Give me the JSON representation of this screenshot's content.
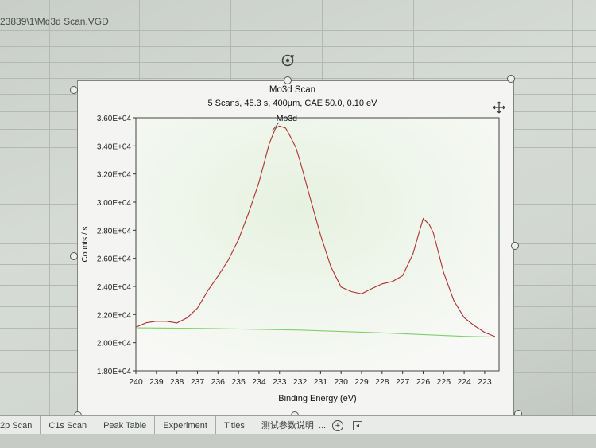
{
  "sheet": {
    "title": "23839\\1\\Mo3d Scan.VGD"
  },
  "tabs": [
    {
      "label": "2p Scan"
    },
    {
      "label": "C1s Scan"
    },
    {
      "label": "Peak Table"
    },
    {
      "label": "Experiment"
    },
    {
      "label": "Titles"
    },
    {
      "label": "测试参数说明"
    },
    {
      "label": "..."
    }
  ],
  "icons": {
    "add_sheet": "plus-circle-icon",
    "scroll_left": "scroll-left-icon",
    "rotate": "rotate-icon",
    "move": "move-icon"
  },
  "chart_data": {
    "type": "line",
    "title": "Mo3d Scan",
    "subtitle": "5 Scans,  45.3 s,  400µm,  CAE 50.0,  0.10 eV",
    "xlabel": "Binding Energy (eV)",
    "ylabel": "Counts / s",
    "xlim": [
      240,
      222.3
    ],
    "x_reversed": true,
    "ylim": [
      18000,
      36000
    ],
    "xticks": [
      240,
      239,
      238,
      237,
      236,
      235,
      234,
      233,
      232,
      231,
      230,
      229,
      228,
      227,
      226,
      225,
      224,
      223
    ],
    "yticks": [
      18000,
      20000,
      22000,
      24000,
      26000,
      28000,
      30000,
      32000,
      34000,
      36000
    ],
    "ytick_labels": [
      "1.80E+04",
      "2.00E+04",
      "2.20E+04",
      "2.40E+04",
      "2.60E+04",
      "2.80E+04",
      "3.00E+04",
      "3.20E+04",
      "3.40E+04",
      "3.60E+04"
    ],
    "annotation": {
      "text": "Mo3d",
      "x": 232.8,
      "y": 35000
    },
    "series": [
      {
        "color": "#b03030",
        "x": [
          240,
          239.5,
          239,
          238.5,
          238,
          237.5,
          237,
          236.5,
          236,
          235.5,
          235,
          234.5,
          234,
          233.5,
          233.2,
          233,
          232.7,
          232.5,
          232.2,
          232,
          231.5,
          231,
          230.5,
          230,
          229.5,
          229,
          228.5,
          228,
          227.5,
          227,
          226.5,
          226.2,
          226,
          225.7,
          225.5,
          225,
          224.5,
          224,
          223.5,
          223,
          222.5
        ],
        "y": [
          21100,
          21200,
          21300,
          21500,
          21600,
          22000,
          22500,
          23500,
          24500,
          25800,
          27500,
          29500,
          31500,
          34000,
          35000,
          35300,
          35400,
          35000,
          34000,
          32800,
          30000,
          27500,
          25500,
          24200,
          23800,
          23400,
          23600,
          24000,
          24400,
          25000,
          26500,
          27800,
          28600,
          28200,
          27800,
          25200,
          23200,
          21800,
          21000,
          20500,
          20400
        ]
      },
      {
        "color": "#7fcf6a",
        "x": [
          240,
          236,
          232,
          228,
          224,
          222.5
        ],
        "y": [
          21050,
          21000,
          20900,
          20700,
          20450,
          20400
        ]
      }
    ]
  }
}
